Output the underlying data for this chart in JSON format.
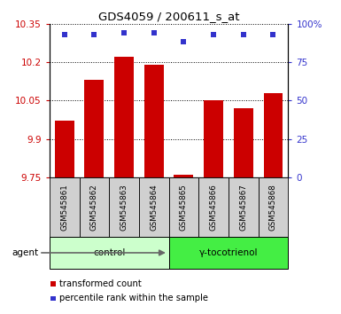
{
  "title": "GDS4059 / 200611_s_at",
  "samples": [
    "GSM545861",
    "GSM545862",
    "GSM545863",
    "GSM545864",
    "GSM545865",
    "GSM545866",
    "GSM545867",
    "GSM545868"
  ],
  "bar_values": [
    9.97,
    10.13,
    10.22,
    10.19,
    9.76,
    10.05,
    10.02,
    10.08
  ],
  "percentile_values": [
    93,
    93,
    94,
    94,
    88,
    93,
    93,
    93
  ],
  "ylim_left": [
    9.75,
    10.35
  ],
  "ylim_right": [
    0,
    100
  ],
  "yticks_left": [
    9.75,
    9.9,
    10.05,
    10.2,
    10.35
  ],
  "yticks_right": [
    0,
    25,
    50,
    75,
    100
  ],
  "ytick_labels_left": [
    "9.75",
    "9.9",
    "10.05",
    "10.2",
    "10.35"
  ],
  "ytick_labels_right": [
    "0",
    "25",
    "50",
    "75",
    "100%"
  ],
  "bar_color": "#cc0000",
  "dot_color": "#3333cc",
  "groups": [
    {
      "label": "control",
      "samples": [
        0,
        1,
        2,
        3
      ],
      "color": "#ccffcc"
    },
    {
      "label": "γ-tocotrienol",
      "samples": [
        4,
        5,
        6,
        7
      ],
      "color": "#44ee44"
    }
  ],
  "agent_label": "agent",
  "legend_items": [
    {
      "color": "#cc0000",
      "label": "transformed count"
    },
    {
      "color": "#3333cc",
      "label": "percentile rank within the sample"
    }
  ],
  "x_label_bg": "#d0d0d0"
}
